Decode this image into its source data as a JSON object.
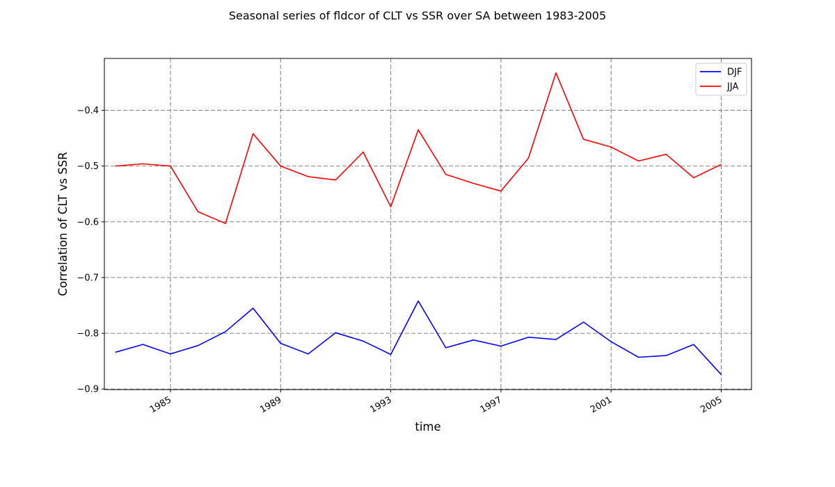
{
  "chart_data": {
    "type": "line",
    "title": "Seasonal series of fldcor of CLT vs SSR over SA between 1983-2005",
    "xlabel": "time",
    "ylabel": "Correlation of CLT vs SSR",
    "x": [
      1983,
      1984,
      1985,
      1986,
      1987,
      1988,
      1989,
      1990,
      1991,
      1992,
      1993,
      1994,
      1995,
      1996,
      1997,
      1998,
      1999,
      2000,
      2001,
      2002,
      2003,
      2004,
      2005
    ],
    "xticks": [
      1985,
      1989,
      1993,
      1997,
      2001,
      2005
    ],
    "xtick_labels": [
      "1985",
      "1989",
      "1993",
      "1997",
      "2001",
      "2005"
    ],
    "yticks": [
      -0.9,
      -0.8,
      -0.7,
      -0.6,
      -0.5,
      -0.4
    ],
    "ytick_labels": [
      "−0.9",
      "−0.8",
      "−0.7",
      "−0.6",
      "−0.5",
      "−0.4"
    ],
    "xlim": [
      1982.6,
      2006.1
    ],
    "ylim": [
      -0.901,
      -0.307
    ],
    "grid": true,
    "legend_position": "upper right",
    "series": [
      {
        "name": "DJF",
        "color": "#0000ff",
        "values": [
          -0.834,
          -0.82,
          -0.837,
          -0.822,
          -0.797,
          -0.755,
          -0.818,
          -0.837,
          -0.799,
          -0.814,
          -0.838,
          -0.742,
          -0.826,
          -0.812,
          -0.823,
          -0.807,
          -0.811,
          -0.78,
          -0.815,
          -0.843,
          -0.84,
          -0.82,
          -0.874
        ]
      },
      {
        "name": "JJA",
        "color": "#ff0000",
        "values": [
          -0.5,
          -0.496,
          -0.5,
          -0.582,
          -0.603,
          -0.442,
          -0.5,
          -0.519,
          -0.525,
          -0.475,
          -0.573,
          -0.435,
          -0.515,
          -0.531,
          -0.545,
          -0.486,
          -0.333,
          -0.452,
          -0.466,
          -0.491,
          -0.479,
          -0.521,
          -0.497
        ]
      }
    ]
  }
}
